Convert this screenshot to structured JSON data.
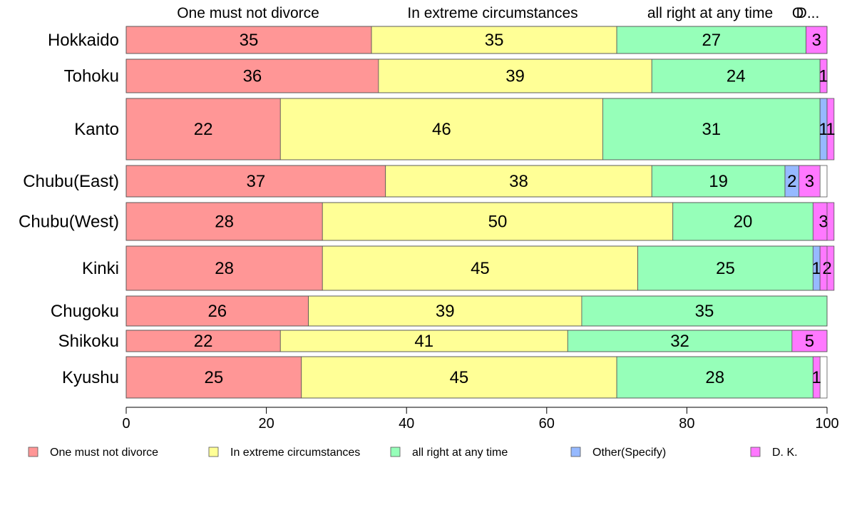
{
  "chart_data": {
    "type": "bar",
    "orientation": "horizontal",
    "stacked": true,
    "categories": [
      "Hokkaido",
      "Tohoku",
      "Kanto",
      "Chubu(East)",
      "Chubu(West)",
      "Kinki",
      "Chugoku",
      "Shikoku",
      "Kyushu"
    ],
    "series": [
      {
        "name": "One must not divorce",
        "color": "#ff9696",
        "values": [
          35,
          36,
          22,
          37,
          28,
          28,
          26,
          22,
          25
        ]
      },
      {
        "name": "In extreme circumstances",
        "color": "#ffff96",
        "values": [
          35,
          39,
          46,
          38,
          50,
          45,
          39,
          41,
          45
        ]
      },
      {
        "name": "all right at any time",
        "color": "#96ffb9",
        "values": [
          27,
          24,
          31,
          19,
          20,
          25,
          35,
          32,
          28
        ]
      },
      {
        "name": "Other(Specify)",
        "color": "#96b9ff",
        "values": [
          0,
          0,
          1,
          2,
          0,
          1,
          0,
          0,
          0
        ]
      },
      {
        "name": "D. K.",
        "color": "#ff78ff",
        "values": [
          3,
          1,
          1,
          3,
          3,
          2,
          0,
          5,
          1
        ]
      }
    ],
    "top_labels": [
      "One must not divorce",
      "In extreme circumstances",
      "all right at any time",
      "O",
      "D..."
    ],
    "xlim": [
      0,
      100
    ],
    "xticks": [
      "0",
      "20",
      "40",
      "60",
      "80",
      "100"
    ],
    "legend_position": "bottom",
    "grid": false
  }
}
